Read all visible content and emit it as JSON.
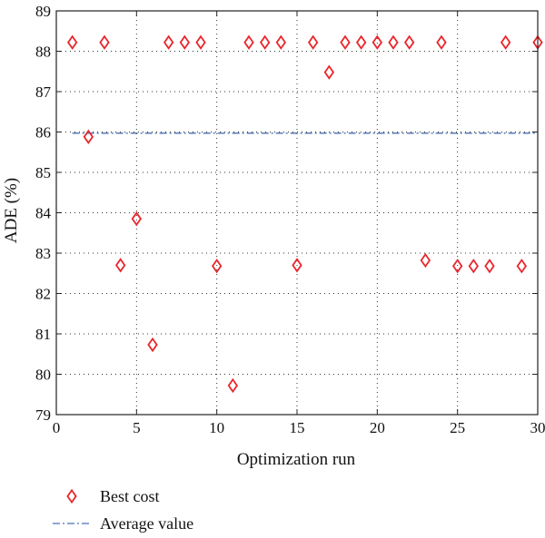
{
  "chart_data": {
    "type": "scatter",
    "title": "",
    "xlabel": "Optimization run",
    "ylabel": "ADE (%)",
    "xlim": [
      0,
      30
    ],
    "ylim": [
      79,
      89
    ],
    "xticks": [
      0,
      5,
      10,
      15,
      20,
      25,
      30
    ],
    "yticks": [
      79,
      80,
      81,
      82,
      83,
      84,
      85,
      86,
      87,
      88,
      89
    ],
    "grid": true,
    "legend_position": "bottom-left, below the axes",
    "series": [
      {
        "name": "Best cost",
        "marker": "diamond",
        "color": "#e8262b",
        "x": [
          1,
          2,
          3,
          4,
          5,
          6,
          7,
          8,
          9,
          10,
          11,
          12,
          13,
          14,
          15,
          16,
          17,
          18,
          19,
          20,
          21,
          22,
          23,
          24,
          25,
          26,
          27,
          28,
          29,
          30
        ],
        "y": [
          88.22,
          85.88,
          88.22,
          82.7,
          83.85,
          80.73,
          88.22,
          88.22,
          88.22,
          82.68,
          79.72,
          88.22,
          88.22,
          88.22,
          82.7,
          88.22,
          87.48,
          88.22,
          88.22,
          88.22,
          88.22,
          88.22,
          82.82,
          88.22,
          82.68,
          82.68,
          82.68,
          88.22,
          82.68,
          88.22
        ]
      },
      {
        "name": "Average value",
        "style": "dash-dot",
        "color": "#4a6fb5",
        "x": [
          1,
          30
        ],
        "y": [
          85.97,
          85.97
        ]
      }
    ]
  }
}
